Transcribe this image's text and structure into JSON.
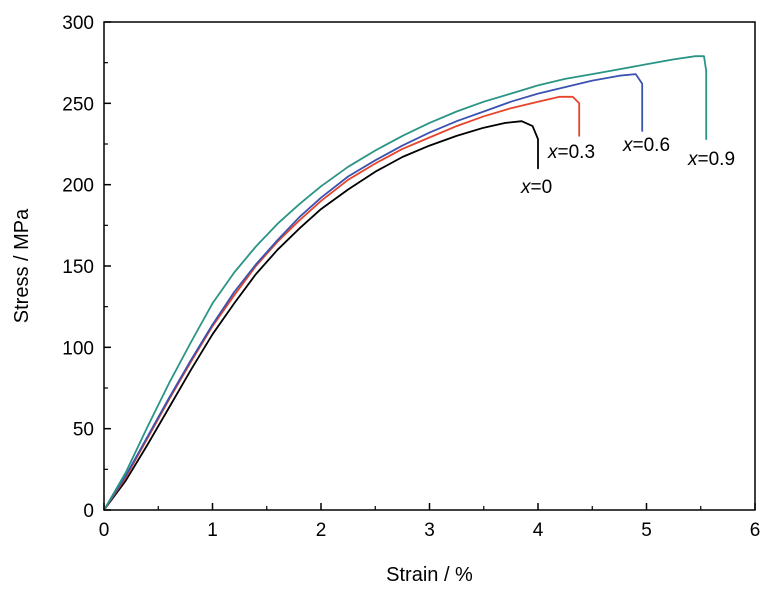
{
  "chart_data": {
    "type": "line",
    "title": "",
    "xlabel": "Strain / %",
    "ylabel": "Stress / MPa",
    "xlim": [
      0,
      6
    ],
    "ylim": [
      0,
      300
    ],
    "xticks": [
      "0",
      "1",
      "2",
      "3",
      "4",
      "5",
      "6"
    ],
    "yticks": [
      "0",
      "50",
      "100",
      "150",
      "200",
      "250",
      "300"
    ],
    "grid": false,
    "legend": "none",
    "series": [
      {
        "name": "x=0",
        "var": "x",
        "value_text": "=0",
        "color": "#000000",
        "x": [
          0,
          0.2,
          0.4,
          0.6,
          0.8,
          1.0,
          1.2,
          1.4,
          1.6,
          1.8,
          2.0,
          2.25,
          2.5,
          2.75,
          3.0,
          3.25,
          3.5,
          3.7,
          3.85,
          3.95,
          4.0,
          4.0
        ],
        "y": [
          0,
          18,
          40,
          63,
          86,
          108,
          127,
          145,
          160,
          173,
          185,
          197,
          208,
          217,
          224,
          230,
          235,
          238,
          239,
          236,
          228,
          210
        ]
      },
      {
        "name": "x=0.3",
        "var": "x",
        "value_text": "=0.3",
        "color": "#e8442a",
        "x": [
          0,
          0.2,
          0.4,
          0.6,
          0.8,
          1.0,
          1.2,
          1.4,
          1.6,
          1.8,
          2.0,
          2.25,
          2.5,
          2.75,
          3.0,
          3.25,
          3.5,
          3.75,
          4.0,
          4.2,
          4.32,
          4.38,
          4.38
        ],
        "y": [
          0,
          20,
          44,
          68,
          91,
          113,
          132,
          150,
          165,
          178,
          190,
          203,
          213,
          222,
          229,
          236,
          242,
          247,
          251,
          254,
          254,
          250,
          230
        ]
      },
      {
        "name": "x=0.6",
        "var": "x",
        "value_text": "=0.6",
        "color": "#3a53b0",
        "x": [
          0,
          0.2,
          0.4,
          0.6,
          0.8,
          1.0,
          1.2,
          1.4,
          1.6,
          1.8,
          2.0,
          2.25,
          2.5,
          2.75,
          3.0,
          3.25,
          3.5,
          3.75,
          4.0,
          4.25,
          4.5,
          4.75,
          4.9,
          4.96,
          4.96
        ],
        "y": [
          0,
          21,
          45,
          69,
          92,
          114,
          134,
          151,
          166,
          180,
          192,
          205,
          215,
          224,
          232,
          239,
          245,
          251,
          256,
          260,
          264,
          267,
          268,
          262,
          233
        ]
      },
      {
        "name": "x=0.9",
        "var": "x",
        "value_text": "=0.9",
        "color": "#2a9485",
        "x": [
          0,
          0.2,
          0.4,
          0.6,
          0.8,
          1.0,
          1.2,
          1.4,
          1.6,
          1.8,
          2.0,
          2.25,
          2.5,
          2.75,
          3.0,
          3.25,
          3.5,
          3.75,
          4.0,
          4.25,
          4.5,
          4.75,
          5.0,
          5.25,
          5.45,
          5.53,
          5.55,
          5.55
        ],
        "y": [
          0,
          23,
          51,
          78,
          103,
          127,
          146,
          162,
          176,
          188,
          199,
          211,
          221,
          230,
          238,
          245,
          251,
          256,
          261,
          265,
          268,
          271,
          274,
          277,
          279,
          279,
          270,
          228
        ]
      }
    ]
  }
}
